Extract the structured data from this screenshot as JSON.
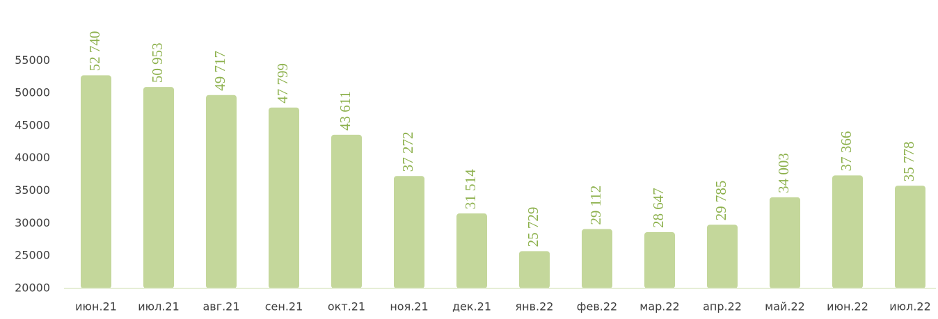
{
  "chart_data": {
    "type": "bar",
    "categories": [
      "июн.21",
      "июл.21",
      "авг.21",
      "сен.21",
      "окт.21",
      "ноя.21",
      "дек.21",
      "янв.22",
      "фев.22",
      "мар.22",
      "апр.22",
      "май.22",
      "июн.22",
      "июл.22"
    ],
    "values": [
      52740,
      50953,
      49717,
      47799,
      43611,
      37272,
      31514,
      25729,
      29112,
      28647,
      29785,
      34003,
      37366,
      35778
    ],
    "value_labels": [
      "52 740",
      "50 953",
      "49 717",
      "47 799",
      "43 611",
      "37 272",
      "31 514",
      "25 729",
      "29 112",
      "28 647",
      "29 785",
      "34 003",
      "37 366",
      "35 778"
    ],
    "color": "#c4d79b",
    "ylim": [
      20000,
      64000
    ],
    "yticks": [
      20000,
      25000,
      30000,
      35000,
      40000,
      45000,
      50000,
      55000
    ],
    "grid": false
  }
}
